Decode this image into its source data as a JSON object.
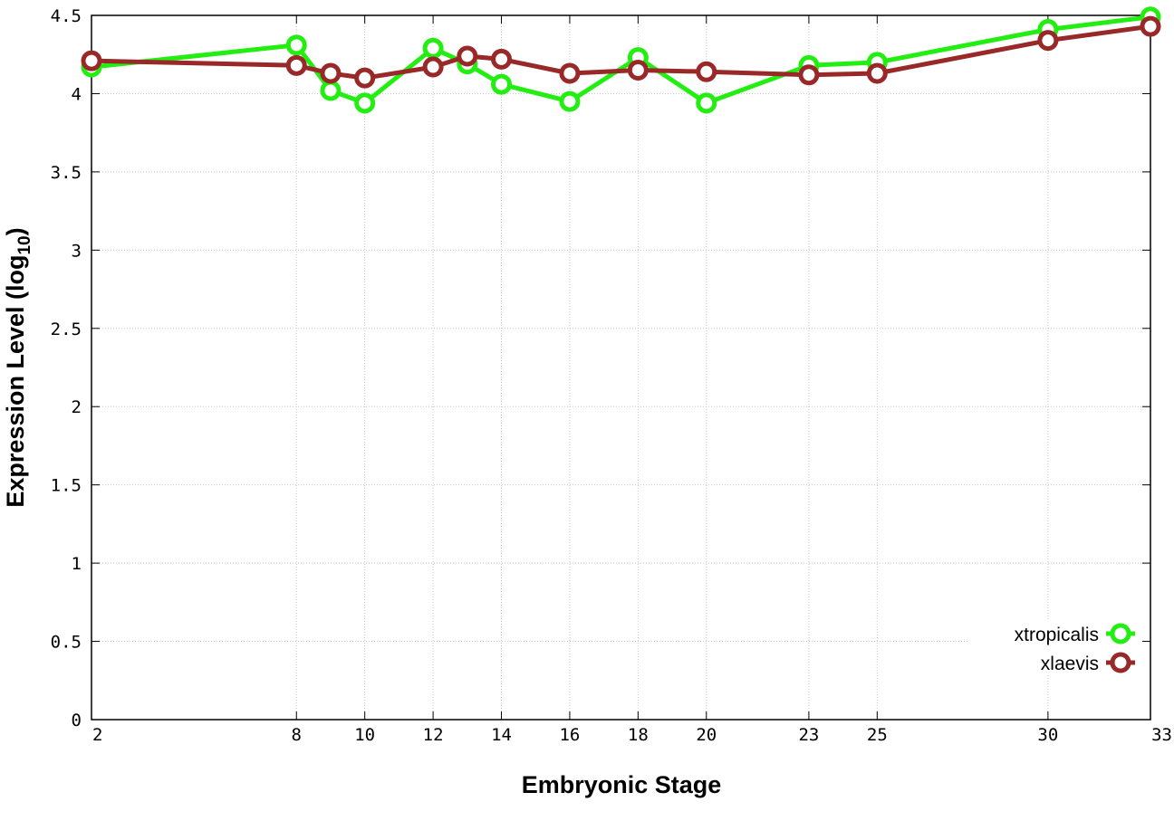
{
  "chart_data": {
    "type": "line",
    "xlabel": "Embryonic Stage",
    "ylabel_main": "Expression Level (log",
    "ylabel_sub": "10",
    "ylabel_close": ")",
    "xlim": [
      2,
      33
    ],
    "ylim": [
      0,
      4.5
    ],
    "x_ticks": [
      2,
      8,
      10,
      12,
      14,
      16,
      18,
      20,
      23,
      25,
      30,
      33
    ],
    "y_ticks": [
      0,
      0.5,
      1,
      1.5,
      2,
      2.5,
      3,
      3.5,
      4,
      4.5
    ],
    "y_tick_labels": [
      "0",
      "0.5",
      "1",
      "1.5",
      "2",
      "2.5",
      "3",
      "3.5",
      "4",
      "4.5"
    ],
    "grid": true,
    "legend_position": "bottom-right",
    "series": [
      {
        "name": "xtropicalis",
        "color": "#22ee11",
        "x": [
          2,
          8,
          9,
          10,
          12,
          13,
          14,
          16,
          18,
          20,
          23,
          25,
          30,
          33
        ],
        "values": [
          4.17,
          4.31,
          4.02,
          3.94,
          4.29,
          4.19,
          4.06,
          3.95,
          4.23,
          3.94,
          4.18,
          4.2,
          4.41,
          4.49
        ]
      },
      {
        "name": "xlaevis",
        "color": "#992828",
        "x": [
          2,
          8,
          9,
          10,
          12,
          13,
          14,
          16,
          18,
          20,
          23,
          25,
          30,
          33
        ],
        "values": [
          4.21,
          4.18,
          4.13,
          4.1,
          4.17,
          4.24,
          4.22,
          4.13,
          4.15,
          4.14,
          4.12,
          4.13,
          4.34,
          4.43
        ]
      }
    ]
  }
}
